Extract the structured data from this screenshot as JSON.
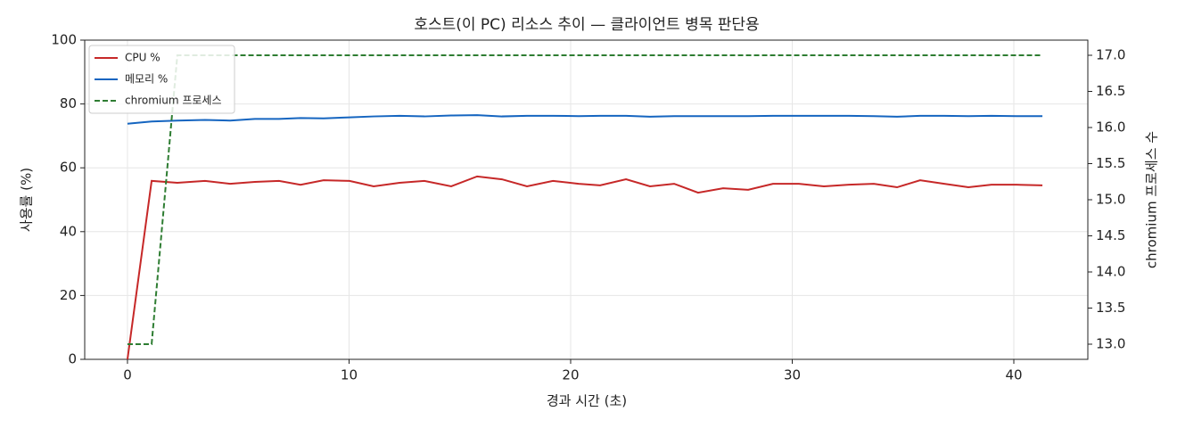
{
  "chart_data": {
    "type": "line",
    "title": "호스트(이 PC) 리소스 추이 — 클라이언트 병목 판단용",
    "x_label": "경과 시간 (초)",
    "y_label": "사용률 (%)",
    "y2_label": "chromium 프로세스 수",
    "x": [
      0,
      1.09,
      2.25,
      3.5,
      4.63,
      5.75,
      6.84,
      7.81,
      8.85,
      10.02,
      11.11,
      12.28,
      13.4,
      14.61,
      15.78,
      16.9,
      18.03,
      19.2,
      20.36,
      21.33,
      22.5,
      23.58,
      24.67,
      25.75,
      26.88,
      28.01,
      29.13,
      30.3,
      31.43,
      32.56,
      33.68,
      34.73,
      35.77,
      36.86,
      37.95,
      38.99,
      40.12,
      41.29
    ],
    "series": [
      {
        "name": "CPU %",
        "color": "#c62828",
        "dashed": false,
        "axis": "y",
        "values": [
          0,
          55.9,
          55.3,
          55.9,
          55.0,
          55.6,
          55.9,
          54.7,
          56.1,
          55.9,
          54.2,
          55.3,
          55.9,
          54.2,
          57.3,
          56.4,
          54.2,
          55.9,
          55.0,
          54.5,
          56.4,
          54.2,
          55.0,
          52.2,
          53.6,
          53.1,
          55.0,
          55.0,
          54.2,
          54.7,
          55.0,
          53.9,
          56.1,
          55.0,
          53.9,
          54.7,
          54.7,
          54.5
        ]
      },
      {
        "name": "메모리 %",
        "color": "#1565c0",
        "dashed": false,
        "axis": "y",
        "values": [
          73.8,
          74.5,
          74.8,
          75.0,
          74.8,
          75.3,
          75.3,
          75.6,
          75.5,
          75.8,
          76.1,
          76.3,
          76.1,
          76.4,
          76.5,
          76.1,
          76.3,
          76.3,
          76.2,
          76.3,
          76.3,
          76.0,
          76.2,
          76.2,
          76.2,
          76.2,
          76.3,
          76.3,
          76.3,
          76.3,
          76.2,
          76.0,
          76.3,
          76.3,
          76.2,
          76.3,
          76.2,
          76.2
        ]
      },
      {
        "name": "chromium 프로세스",
        "color": "#2e7d32",
        "dashed": true,
        "axis": "y2",
        "values": [
          13,
          13,
          17,
          17,
          17,
          17,
          17,
          17,
          17,
          17,
          17,
          17,
          17,
          17,
          17,
          17,
          17,
          17,
          17,
          17,
          17,
          17,
          17,
          17,
          17,
          17,
          17,
          17,
          17,
          17,
          17,
          17,
          17,
          17,
          17,
          17,
          17,
          17
        ]
      }
    ],
    "xlim": [
      -1.93,
      43.34
    ],
    "xticks": [
      0,
      10,
      20,
      30,
      40
    ],
    "ylim": [
      0,
      100
    ],
    "yticks": [
      0,
      20,
      40,
      60,
      80,
      100
    ],
    "y2lim": [
      12.79,
      17.21
    ],
    "y2ticks": [
      {
        "value": 13,
        "label": "13.0"
      },
      {
        "value": 13.5,
        "label": "13.5"
      },
      {
        "value": 14,
        "label": "14.0"
      },
      {
        "value": 14.5,
        "label": "14.5"
      },
      {
        "value": 15,
        "label": "15.0"
      },
      {
        "value": 15.5,
        "label": "15.5"
      },
      {
        "value": 16,
        "label": "16.0"
      },
      {
        "value": 16.5,
        "label": "16.5"
      },
      {
        "value": 17,
        "label": "17.0"
      }
    ],
    "grid": true,
    "legend": "upper-left"
  }
}
